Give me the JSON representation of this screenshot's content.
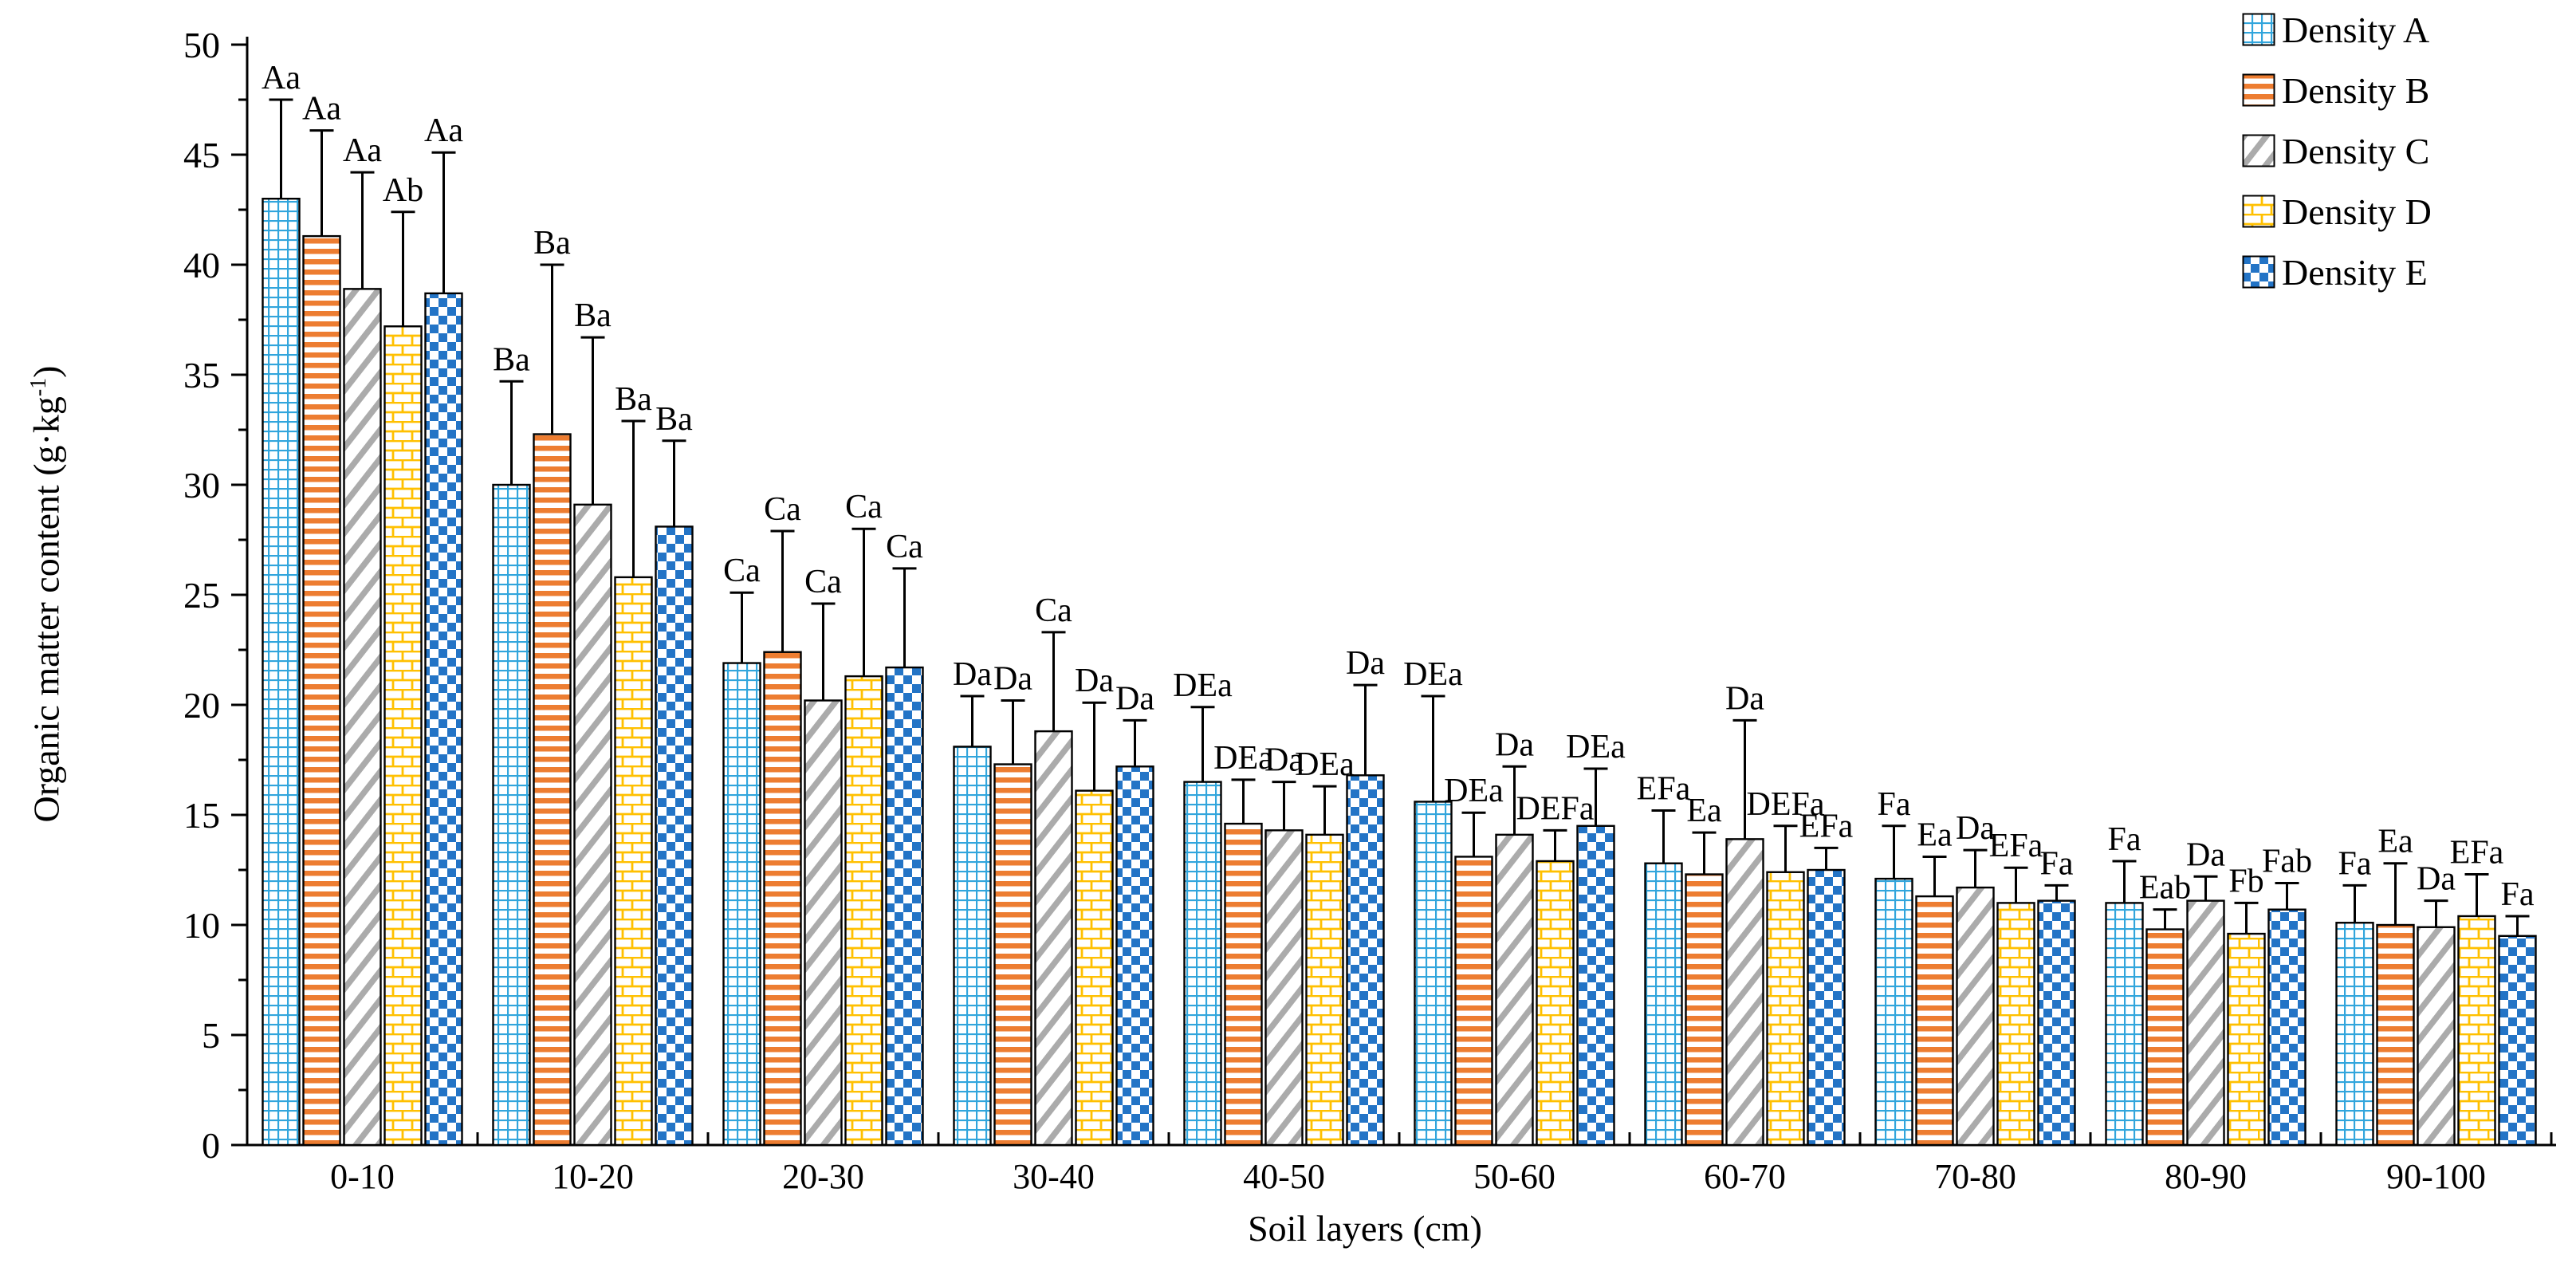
{
  "chart_data": {
    "type": "bar",
    "title": "",
    "xlabel": "Soil layers (cm)",
    "ylabel": "Organic matter content (g·kg⁻¹)",
    "ylabel_prefix": "Organic matter content (g·kg",
    "ylabel_sup": "-1",
    "ylabel_suffix": ")",
    "ylim": [
      0,
      50
    ],
    "yticks": [
      0,
      5,
      10,
      15,
      20,
      25,
      30,
      35,
      40,
      45,
      50
    ],
    "ytick_minor_step": 2.5,
    "grid": false,
    "legend_position": "top-right",
    "error_bars": "plus-one-sd",
    "categories": [
      "0-10",
      "10-20",
      "20-30",
      "30-40",
      "40-50",
      "50-60",
      "60-70",
      "70-80",
      "80-90",
      "90-100"
    ],
    "series": [
      {
        "name": "Density A",
        "pattern": "grid",
        "color": "#31A5DC",
        "values": [
          43.0,
          30.0,
          21.9,
          18.1,
          16.5,
          15.6,
          12.8,
          12.1,
          11.0,
          10.1
        ],
        "errors": [
          4.5,
          4.7,
          3.2,
          2.3,
          3.4,
          4.8,
          2.4,
          2.4,
          1.9,
          1.7
        ],
        "labels": [
          "Aa",
          "Ba",
          "Ca",
          "Da",
          "DEa",
          "DEa",
          "EFa",
          "Fa",
          "Fa",
          "Fa"
        ]
      },
      {
        "name": "Density B",
        "pattern": "hstripe",
        "color": "#ED7D31",
        "values": [
          41.3,
          32.3,
          22.4,
          17.3,
          14.6,
          13.1,
          12.3,
          11.3,
          9.8,
          10.0
        ],
        "errors": [
          4.8,
          7.7,
          5.5,
          2.9,
          2.0,
          2.0,
          1.9,
          1.8,
          0.9,
          2.8
        ],
        "labels": [
          "Aa",
          "Ba",
          "Ca",
          "Da",
          "DEa",
          "DEa",
          "Ea",
          "Ea",
          "Eab",
          "Ea"
        ]
      },
      {
        "name": "Density C",
        "pattern": "diag",
        "color": "#ABABAB",
        "values": [
          38.9,
          29.1,
          20.2,
          18.8,
          14.3,
          14.1,
          13.9,
          11.7,
          11.1,
          9.9
        ],
        "errors": [
          5.3,
          7.6,
          4.4,
          4.5,
          2.2,
          3.1,
          5.4,
          1.7,
          1.1,
          1.2
        ],
        "labels": [
          "Aa",
          "Ba",
          "Ca",
          "Ca",
          "Da",
          "Da",
          "Da",
          "Da",
          "Da",
          "Da"
        ]
      },
      {
        "name": "Density D",
        "pattern": "brick",
        "color": "#FFC000",
        "values": [
          37.2,
          25.8,
          21.3,
          16.1,
          14.1,
          12.9,
          12.4,
          11.0,
          9.6,
          10.4
        ],
        "errors": [
          5.2,
          7.1,
          6.7,
          4.0,
          2.2,
          1.4,
          2.1,
          1.6,
          1.4,
          1.9
        ],
        "labels": [
          "Ab",
          "Ba",
          "Ca",
          "Da",
          "DEa",
          "DEFa",
          "DEFa",
          "EFa",
          "Fb",
          "EFa"
        ]
      },
      {
        "name": "Density E",
        "pattern": "check",
        "color": "#2374C6",
        "values": [
          38.7,
          28.1,
          21.7,
          17.2,
          16.8,
          14.5,
          12.5,
          11.1,
          10.7,
          9.5
        ],
        "errors": [
          6.4,
          3.9,
          4.5,
          2.1,
          4.1,
          2.6,
          1.0,
          0.7,
          1.2,
          0.9
        ],
        "labels": [
          "Aa",
          "Ba",
          "Ca",
          "Da",
          "Da",
          "DEa",
          "EFa",
          "Fa",
          "Fab",
          "Fa"
        ]
      }
    ]
  }
}
